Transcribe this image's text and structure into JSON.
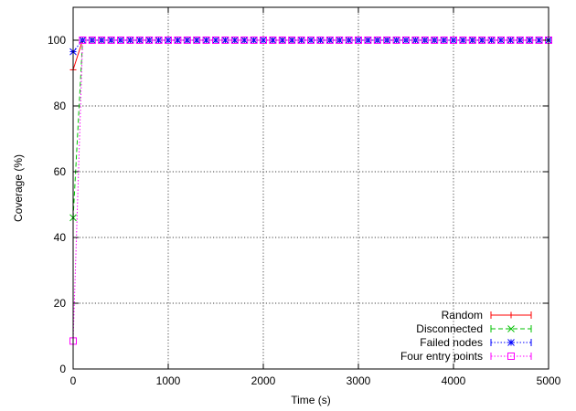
{
  "chart_data": {
    "type": "line",
    "title": "",
    "xlabel": "Time (s)",
    "ylabel": "Coverage (%)",
    "xlim": [
      0,
      5000
    ],
    "ylim": [
      0,
      110
    ],
    "x_ticks": [
      0,
      1000,
      2000,
      3000,
      4000,
      5000
    ],
    "y_ticks": [
      0,
      20,
      40,
      60,
      80,
      100
    ],
    "grid": true,
    "legend_position": "bottom-right",
    "series": [
      {
        "name": "Random",
        "color": "#ff0000",
        "marker": "plus",
        "dash": "solid",
        "x": [
          0,
          100,
          200,
          300,
          400,
          500,
          600,
          700,
          800,
          900,
          1000,
          1100,
          1200,
          1300,
          1400,
          1500,
          1600,
          1700,
          1800,
          1900,
          2000,
          2100,
          2200,
          2300,
          2400,
          2500,
          2600,
          2700,
          2800,
          2900,
          3000,
          3100,
          3200,
          3300,
          3400,
          3500,
          3600,
          3700,
          3800,
          3900,
          4000,
          4100,
          4200,
          4300,
          4400,
          4500,
          4600,
          4700,
          4800,
          4900,
          5000
        ],
        "values": [
          91,
          100,
          100,
          100,
          100,
          100,
          100,
          100,
          100,
          100,
          100,
          100,
          100,
          100,
          100,
          100,
          100,
          100,
          100,
          100,
          100,
          100,
          100,
          100,
          100,
          100,
          100,
          100,
          100,
          100,
          100,
          100,
          100,
          100,
          100,
          100,
          100,
          100,
          100,
          100,
          100,
          100,
          100,
          100,
          100,
          100,
          100,
          100,
          100,
          100,
          100
        ]
      },
      {
        "name": "Disconnected",
        "color": "#00c000",
        "marker": "x",
        "dash": "dashed",
        "x": [
          0,
          100,
          200,
          300,
          400,
          500,
          600,
          700,
          800,
          900,
          1000,
          1100,
          1200,
          1300,
          1400,
          1500,
          1600,
          1700,
          1800,
          1900,
          2000,
          2100,
          2200,
          2300,
          2400,
          2500,
          2600,
          2700,
          2800,
          2900,
          3000,
          3100,
          3200,
          3300,
          3400,
          3500,
          3600,
          3700,
          3800,
          3900,
          4000,
          4100,
          4200,
          4300,
          4400,
          4500,
          4600,
          4700,
          4800,
          4900,
          5000
        ],
        "values": [
          46,
          100,
          100,
          100,
          100,
          100,
          100,
          100,
          100,
          100,
          100,
          100,
          100,
          100,
          100,
          100,
          100,
          100,
          100,
          100,
          100,
          100,
          100,
          100,
          100,
          100,
          100,
          100,
          100,
          100,
          100,
          100,
          100,
          100,
          100,
          100,
          100,
          100,
          100,
          100,
          100,
          100,
          100,
          100,
          100,
          100,
          100,
          100,
          100,
          100,
          100
        ]
      },
      {
        "name": "Failed nodes",
        "color": "#0000ff",
        "marker": "star",
        "dash": "dotted",
        "x": [
          0,
          100,
          200,
          300,
          400,
          500,
          600,
          700,
          800,
          900,
          1000,
          1100,
          1200,
          1300,
          1400,
          1500,
          1600,
          1700,
          1800,
          1900,
          2000,
          2100,
          2200,
          2300,
          2400,
          2500,
          2600,
          2700,
          2800,
          2900,
          3000,
          3100,
          3200,
          3300,
          3400,
          3500,
          3600,
          3700,
          3800,
          3900,
          4000,
          4100,
          4200,
          4300,
          4400,
          4500,
          4600,
          4700,
          4800,
          4900,
          5000
        ],
        "values": [
          96.5,
          100,
          100,
          100,
          100,
          100,
          100,
          100,
          100,
          100,
          100,
          100,
          100,
          100,
          100,
          100,
          100,
          100,
          100,
          100,
          100,
          100,
          100,
          100,
          100,
          100,
          100,
          100,
          100,
          100,
          100,
          100,
          100,
          100,
          100,
          100,
          100,
          100,
          100,
          100,
          100,
          100,
          100,
          100,
          100,
          100,
          100,
          100,
          100,
          100,
          100
        ]
      },
      {
        "name": "Four entry points",
        "color": "#ff00ff",
        "marker": "square",
        "dash": "dotted",
        "x": [
          0,
          100,
          200,
          300,
          400,
          500,
          600,
          700,
          800,
          900,
          1000,
          1100,
          1200,
          1300,
          1400,
          1500,
          1600,
          1700,
          1800,
          1900,
          2000,
          2100,
          2200,
          2300,
          2400,
          2500,
          2600,
          2700,
          2800,
          2900,
          3000,
          3100,
          3200,
          3300,
          3400,
          3500,
          3600,
          3700,
          3800,
          3900,
          4000,
          4100,
          4200,
          4300,
          4400,
          4500,
          4600,
          4700,
          4800,
          4900,
          5000
        ],
        "values": [
          8.5,
          100,
          100,
          100,
          100,
          100,
          100,
          100,
          100,
          100,
          100,
          100,
          100,
          100,
          100,
          100,
          100,
          100,
          100,
          100,
          100,
          100,
          100,
          100,
          100,
          100,
          100,
          100,
          100,
          100,
          100,
          100,
          100,
          100,
          100,
          100,
          100,
          100,
          100,
          100,
          100,
          100,
          100,
          100,
          100,
          100,
          100,
          100,
          100,
          100,
          100
        ]
      }
    ]
  }
}
